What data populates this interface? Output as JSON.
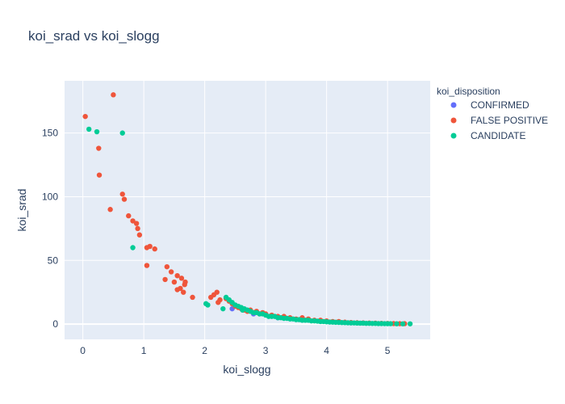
{
  "chart_data": {
    "type": "scatter",
    "title": "koi_srad vs koi_slogg",
    "xlabel": "koi_slogg",
    "ylabel": "koi_srad",
    "xlim": [
      -0.3,
      5.7
    ],
    "ylim": [
      -12,
      191
    ],
    "xticks": [
      0,
      1,
      2,
      3,
      4,
      5
    ],
    "yticks": [
      0,
      50,
      100,
      150
    ],
    "grid": true,
    "legend_position": "right",
    "legend_title": "koi_disposition",
    "series": [
      {
        "name": "CONFIRMED",
        "color": "#636efa",
        "points": [
          [
            2.45,
            12
          ],
          [
            2.8,
            8
          ],
          [
            3.2,
            5
          ],
          [
            3.6,
            3.5
          ],
          [
            4.0,
            2
          ],
          [
            4.4,
            1
          ],
          [
            4.6,
            0.8
          ]
        ]
      },
      {
        "name": "FALSE POSITIVE",
        "color": "#ef553b",
        "points": [
          [
            0.04,
            163
          ],
          [
            0.5,
            180
          ],
          [
            0.26,
            138
          ],
          [
            0.27,
            117
          ],
          [
            0.65,
            102
          ],
          [
            0.68,
            98
          ],
          [
            0.45,
            90
          ],
          [
            0.75,
            85
          ],
          [
            0.82,
            81
          ],
          [
            0.88,
            79
          ],
          [
            0.9,
            75
          ],
          [
            0.93,
            70
          ],
          [
            1.05,
            60
          ],
          [
            1.1,
            61
          ],
          [
            1.18,
            59
          ],
          [
            1.05,
            46
          ],
          [
            1.38,
            45
          ],
          [
            1.45,
            41
          ],
          [
            1.55,
            38
          ],
          [
            1.62,
            36
          ],
          [
            1.68,
            33
          ],
          [
            1.67,
            31
          ],
          [
            1.5,
            33
          ],
          [
            1.35,
            35
          ],
          [
            1.6,
            28
          ],
          [
            1.55,
            27
          ],
          [
            1.65,
            25
          ],
          [
            1.8,
            21
          ],
          [
            2.1,
            21
          ],
          [
            2.15,
            23
          ],
          [
            2.2,
            25
          ],
          [
            2.22,
            17
          ],
          [
            2.25,
            19
          ],
          [
            2.35,
            20
          ],
          [
            2.4,
            18
          ],
          [
            2.45,
            16
          ],
          [
            2.5,
            14
          ],
          [
            2.55,
            13
          ],
          [
            2.6,
            12
          ],
          [
            2.65,
            11
          ],
          [
            2.7,
            10
          ],
          [
            2.75,
            11
          ],
          [
            2.8,
            9
          ],
          [
            2.85,
            10
          ],
          [
            2.9,
            8
          ],
          [
            2.95,
            9
          ],
          [
            3.0,
            8
          ],
          [
            3.1,
            7
          ],
          [
            3.2,
            6
          ],
          [
            3.3,
            6
          ],
          [
            3.4,
            5
          ],
          [
            3.5,
            4
          ],
          [
            3.6,
            5
          ],
          [
            3.7,
            4
          ],
          [
            3.8,
            3
          ],
          [
            3.9,
            3
          ],
          [
            4.0,
            2.5
          ],
          [
            4.1,
            2
          ],
          [
            4.2,
            2
          ],
          [
            4.3,
            1.5
          ],
          [
            4.4,
            1.2
          ],
          [
            4.5,
            1
          ],
          [
            4.6,
            0.9
          ],
          [
            4.7,
            0.8
          ],
          [
            4.8,
            0.7
          ],
          [
            4.9,
            0.6
          ],
          [
            5.0,
            0.5
          ],
          [
            5.1,
            0.4
          ],
          [
            5.2,
            0.3
          ],
          [
            5.28,
            0.3
          ]
        ]
      },
      {
        "name": "CANDIDATE",
        "color": "#00cc96",
        "points": [
          [
            0.1,
            153
          ],
          [
            0.23,
            151
          ],
          [
            0.65,
            150
          ],
          [
            0.82,
            60
          ],
          [
            2.02,
            16
          ],
          [
            2.05,
            15
          ],
          [
            2.3,
            12
          ],
          [
            2.35,
            21
          ],
          [
            2.4,
            19
          ],
          [
            2.45,
            17
          ],
          [
            2.5,
            15
          ],
          [
            2.55,
            14
          ],
          [
            2.6,
            13
          ],
          [
            2.62,
            11
          ],
          [
            2.65,
            12
          ],
          [
            2.7,
            11
          ],
          [
            2.75,
            10
          ],
          [
            2.8,
            9
          ],
          [
            2.85,
            9
          ],
          [
            2.9,
            8
          ],
          [
            2.95,
            8
          ],
          [
            3.0,
            7
          ],
          [
            3.05,
            6
          ],
          [
            3.1,
            6
          ],
          [
            3.15,
            6
          ],
          [
            3.2,
            5
          ],
          [
            3.25,
            5
          ],
          [
            3.3,
            4.5
          ],
          [
            3.35,
            4.5
          ],
          [
            3.4,
            4
          ],
          [
            3.45,
            4
          ],
          [
            3.5,
            3.5
          ],
          [
            3.55,
            3.5
          ],
          [
            3.6,
            3
          ],
          [
            3.65,
            3
          ],
          [
            3.7,
            3
          ],
          [
            3.75,
            2.5
          ],
          [
            3.8,
            2.5
          ],
          [
            3.85,
            2.3
          ],
          [
            3.9,
            2
          ],
          [
            3.95,
            2
          ],
          [
            4.0,
            1.8
          ],
          [
            4.05,
            1.6
          ],
          [
            4.1,
            1.5
          ],
          [
            4.15,
            1.4
          ],
          [
            4.2,
            1.3
          ],
          [
            4.25,
            1.2
          ],
          [
            4.3,
            1.1
          ],
          [
            4.35,
            1.0
          ],
          [
            4.4,
            0.9
          ],
          [
            4.45,
            0.9
          ],
          [
            4.5,
            0.8
          ],
          [
            4.55,
            0.7
          ],
          [
            4.6,
            0.7
          ],
          [
            4.65,
            0.6
          ],
          [
            4.7,
            0.6
          ],
          [
            4.75,
            0.5
          ],
          [
            4.8,
            0.5
          ],
          [
            4.85,
            0.4
          ],
          [
            4.9,
            0.4
          ],
          [
            4.95,
            0.35
          ],
          [
            5.0,
            0.3
          ],
          [
            5.05,
            0.3
          ],
          [
            5.15,
            0.25
          ],
          [
            5.25,
            0.2
          ],
          [
            5.37,
            0.2
          ]
        ]
      }
    ]
  }
}
